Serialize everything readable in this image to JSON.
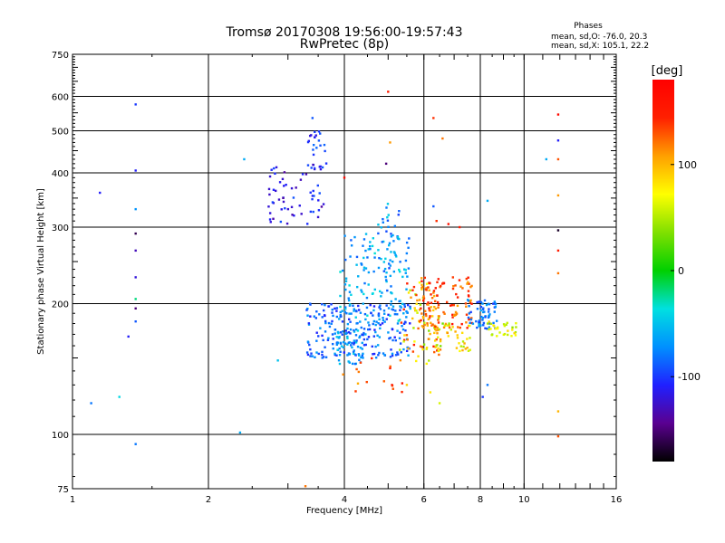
{
  "header": {
    "title": "Tromsø 20170308 19:56:00-19:57:43",
    "subtitle": "RwPretec (8p)"
  },
  "stats": {
    "heading": "Phases",
    "line_o": "mean, sd,O: -76.0, 20.3",
    "line_x": "mean, sd,X: 105.1, 22.2"
  },
  "chart_data": {
    "type": "scatter",
    "title": "Tromsø 20170308 19:56:00-19:57:43",
    "subtitle": "RwPretec (8p)",
    "xlabel": "Frequency [MHz]",
    "ylabel": "Stationary phase Virtual Height [km]",
    "x_scale": "log",
    "y_scale": "log",
    "xlim": [
      1,
      16
    ],
    "ylim": [
      75,
      750
    ],
    "x_ticks": [
      1,
      2,
      4,
      6,
      8,
      10,
      16
    ],
    "y_ticks": [
      75,
      100,
      200,
      300,
      400,
      500,
      600,
      750
    ],
    "x_gridlines": [
      2,
      4,
      6,
      8,
      10
    ],
    "y_gridlines": [
      100,
      200,
      300,
      400,
      500,
      600
    ],
    "grid": true,
    "colorbar": {
      "label": "[deg]",
      "range": [
        -180,
        180
      ],
      "ticks": [
        100,
        0,
        -100
      ],
      "colors": [
        "#000000",
        "#5a0090",
        "#2020ff",
        "#0090ff",
        "#00e0e0",
        "#00d000",
        "#80e000",
        "#ffff00",
        "#ffa000",
        "#ff2000",
        "#ff0000"
      ]
    },
    "series": [
      {
        "values": [
          {
            "x": 1.38,
            "y": 575,
            "phase": -100
          },
          {
            "x": 1.38,
            "y": 405,
            "phase": -110
          },
          {
            "x": 1.38,
            "y": 330,
            "phase": -70
          },
          {
            "x": 1.38,
            "y": 290,
            "phase": -160
          },
          {
            "x": 1.38,
            "y": 265,
            "phase": -130
          },
          {
            "x": 1.38,
            "y": 230,
            "phase": -120
          },
          {
            "x": 1.38,
            "y": 205,
            "phase": -20
          },
          {
            "x": 1.38,
            "y": 195,
            "phase": -150
          },
          {
            "x": 1.38,
            "y": 182,
            "phase": -90
          },
          {
            "x": 1.38,
            "y": 95,
            "phase": -80
          },
          {
            "x": 1.1,
            "y": 118,
            "phase": -80
          },
          {
            "x": 1.15,
            "y": 360,
            "phase": -110
          },
          {
            "x": 1.27,
            "y": 122,
            "phase": -40
          },
          {
            "x": 1.33,
            "y": 168,
            "phase": -110
          },
          {
            "x": 2.35,
            "y": 101,
            "phase": -60
          },
          {
            "x": 2.4,
            "y": 430,
            "phase": -60
          },
          {
            "x": 2.85,
            "y": 148,
            "phase": -50
          },
          {
            "x": 3.28,
            "y": 76,
            "phase": 120
          },
          {
            "x": 3.4,
            "y": 535,
            "phase": -90
          },
          {
            "x": 5.0,
            "y": 615,
            "phase": 150
          },
          {
            "x": 4.95,
            "y": 420,
            "phase": -150
          },
          {
            "x": 4.0,
            "y": 390,
            "phase": 170
          },
          {
            "x": 5.05,
            "y": 470,
            "phase": 110
          },
          {
            "x": 6.3,
            "y": 535,
            "phase": 140
          },
          {
            "x": 6.6,
            "y": 480,
            "phase": 120
          },
          {
            "x": 8.3,
            "y": 345,
            "phase": -60
          },
          {
            "x": 11.2,
            "y": 430,
            "phase": -60
          },
          {
            "x": 11.9,
            "y": 545,
            "phase": 170
          },
          {
            "x": 11.9,
            "y": 475,
            "phase": -110
          },
          {
            "x": 11.9,
            "y": 430,
            "phase": 130
          },
          {
            "x": 11.9,
            "y": 355,
            "phase": 110
          },
          {
            "x": 11.9,
            "y": 295,
            "phase": -170
          },
          {
            "x": 11.9,
            "y": 265,
            "phase": 150
          },
          {
            "x": 11.9,
            "y": 235,
            "phase": 120
          },
          {
            "x": 11.9,
            "y": 113,
            "phase": 100
          },
          {
            "x": 11.9,
            "y": 99,
            "phase": 130
          },
          {
            "x": 6.3,
            "y": 335,
            "phase": -90
          },
          {
            "x": 6.4,
            "y": 310,
            "phase": 140
          },
          {
            "x": 6.8,
            "y": 305,
            "phase": 160
          },
          {
            "x": 7.2,
            "y": 300,
            "phase": 150
          },
          {
            "x": 6.2,
            "y": 125,
            "phase": 80
          },
          {
            "x": 6.5,
            "y": 118,
            "phase": 60
          },
          {
            "x": 8.1,
            "y": 122,
            "phase": -100
          },
          {
            "x": 8.3,
            "y": 130,
            "phase": -80
          },
          {
            "x": 5.1,
            "y": 130,
            "phase": 150
          },
          {
            "x": 5.5,
            "y": 130,
            "phase": 90
          }
        ]
      }
    ],
    "clusters": [
      {
        "x": [
          2.7,
          3.6
        ],
        "y": [
          305,
          420
        ],
        "phase": [
          -140,
          -90
        ],
        "count": 60
      },
      {
        "x": [
          3.3,
          3.7
        ],
        "y": [
          400,
          500
        ],
        "phase": [
          -130,
          -80
        ],
        "count": 25
      },
      {
        "x": [
          3.3,
          5.6
        ],
        "y": [
          150,
          200
        ],
        "phase": [
          -110,
          -60
        ],
        "count": 220
      },
      {
        "x": [
          3.8,
          4.4
        ],
        "y": [
          145,
          175
        ],
        "phase": [
          -90,
          -40
        ],
        "count": 60
      },
      {
        "x": [
          3.9,
          5.6
        ],
        "y": [
          180,
          290
        ],
        "phase": [
          -90,
          -30
        ],
        "count": 120
      },
      {
        "x": [
          4.7,
          5.3
        ],
        "y": [
          230,
          340
        ],
        "phase": [
          -100,
          -40
        ],
        "count": 40
      },
      {
        "x": [
          5.3,
          6.5
        ],
        "y": [
          145,
          225
        ],
        "phase": [
          40,
          150
        ],
        "count": 80
      },
      {
        "x": [
          5.9,
          7.7
        ],
        "y": [
          175,
          230
        ],
        "phase": [
          100,
          160
        ],
        "count": 110
      },
      {
        "x": [
          6.0,
          7.6
        ],
        "y": [
          155,
          180
        ],
        "phase": [
          30,
          120
        ],
        "count": 50
      },
      {
        "x": [
          7.5,
          8.7
        ],
        "y": [
          175,
          205
        ],
        "phase": [
          -100,
          -60
        ],
        "count": 60
      },
      {
        "x": [
          8.3,
          9.6
        ],
        "y": [
          168,
          182
        ],
        "phase": [
          40,
          90
        ],
        "count": 30
      },
      {
        "x": [
          3.9,
          5.5
        ],
        "y": [
          125,
          150
        ],
        "phase": [
          100,
          170
        ],
        "count": 15
      }
    ]
  }
}
